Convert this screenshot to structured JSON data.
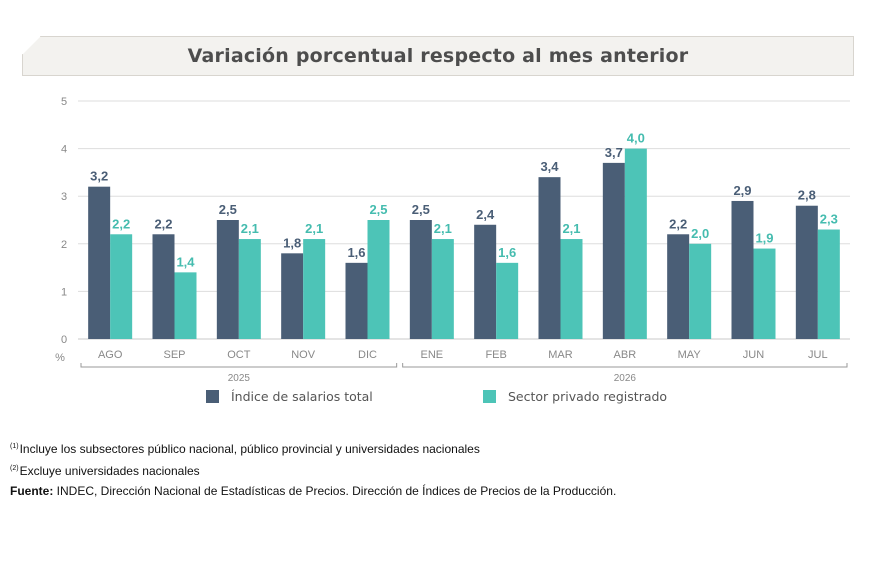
{
  "title": "Variación porcentual respecto al mes anterior",
  "colors": {
    "series1": "#4a5e76",
    "series2": "#4dc4b7",
    "grid": "#dddddd",
    "axis_text": "#888888",
    "label_dark": "#4a5e76",
    "label_teal": "#45bcaf"
  },
  "chart_data": {
    "type": "bar",
    "categories": [
      "AGO",
      "SEP",
      "OCT",
      "NOV",
      "DIC",
      "ENE",
      "FEB",
      "MAR",
      "ABR",
      "MAY",
      "JUN",
      "JUL"
    ],
    "groups": [
      {
        "label": "2025",
        "from": 0,
        "to": 4
      },
      {
        "label": "2026",
        "from": 5,
        "to": 11
      }
    ],
    "series": [
      {
        "name": "Índice de salarios total",
        "values": [
          3.2,
          2.2,
          2.5,
          1.8,
          1.6,
          2.5,
          2.4,
          3.4,
          3.7,
          2.2,
          2.9,
          2.8
        ],
        "labels": [
          "3,2",
          "2,2",
          "2,5",
          "1,8",
          "1,6",
          "2,5",
          "2,4",
          "3,4",
          "3,7",
          "2,2",
          "2,9",
          "2,8"
        ]
      },
      {
        "name": "Sector privado registrado",
        "values": [
          2.2,
          1.4,
          2.1,
          2.1,
          2.5,
          2.1,
          1.6,
          2.1,
          4.0,
          2.0,
          1.9,
          2.3
        ],
        "labels": [
          "2,2",
          "1,4",
          "2,1",
          "2,1",
          "2,5",
          "2,1",
          "1,6",
          "2,1",
          "4,0",
          "2,0",
          "1,9",
          "2,3"
        ]
      }
    ],
    "y_ticks": [
      "0",
      "1",
      "2",
      "3",
      "4",
      "5"
    ],
    "ylim": [
      0,
      5
    ],
    "y_unit": "%",
    "grid": true,
    "legend_position": "bottom"
  },
  "notes": [
    {
      "mark": "(1)",
      "text": "Incluye los subsectores público nacional, público provincial y universidades nacionales"
    },
    {
      "mark": "(2)",
      "text": "Excluye universidades nacionales"
    }
  ],
  "source": {
    "label": "Fuente:",
    "text": " INDEC, Dirección Nacional de Estadísticas de Precios. Dirección de Índices de Precios de la Producción."
  }
}
